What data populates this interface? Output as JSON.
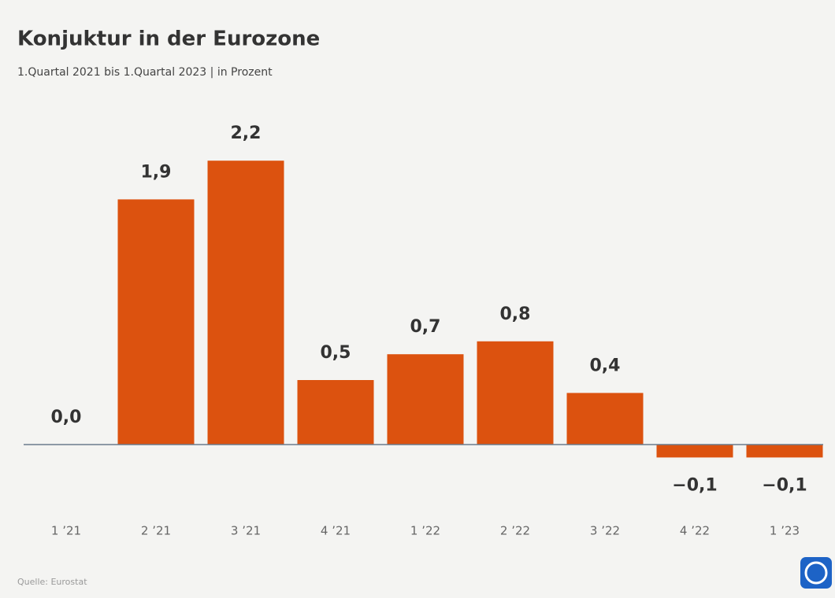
{
  "chart_data": {
    "type": "bar",
    "title": "Konjuktur in der Eurozone",
    "subtitle": "1.Quartal 2021 bis 1.Quartal 2023 | in Prozent",
    "categories": [
      "1 ’21",
      "2 ’21",
      "3 ’21",
      "4 ’21",
      "1 ’22",
      "2 ’22",
      "3 ’22",
      "4 ’22",
      "1 ’23"
    ],
    "values": [
      0.0,
      1.9,
      2.2,
      0.5,
      0.7,
      0.8,
      0.4,
      -0.1,
      -0.1
    ],
    "value_labels": [
      "0,0",
      "1,9",
      "2,2",
      "0,5",
      "0,7",
      "0,8",
      "0,4",
      "−0,1",
      "−0,1"
    ],
    "color": "#dc520f",
    "source": "Quelle: Eurostat"
  }
}
